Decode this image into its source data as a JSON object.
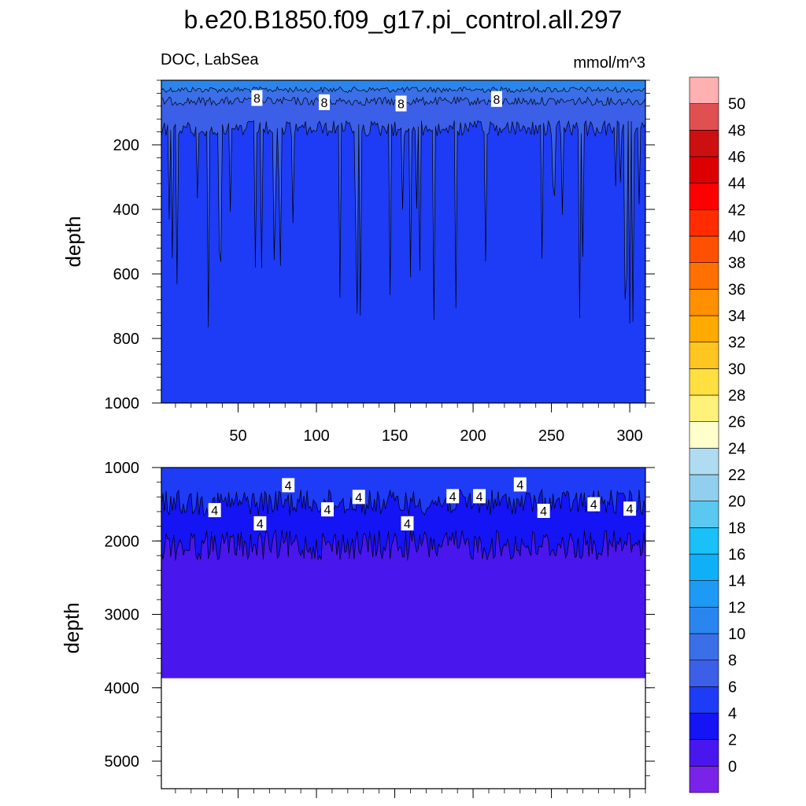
{
  "title": "b.e20.B1850.f09_g17.pi_control.all.297",
  "chart_data": [
    {
      "type": "contour",
      "panel": "upper",
      "left_label": "DOC, LabSea",
      "right_label": "mmol/m^3",
      "ylabel": "depth",
      "ylim": [
        0,
        1000
      ],
      "y_reversed": true,
      "y_ticks": [
        "200",
        "400",
        "600",
        "800",
        "1000"
      ],
      "y_tick_values": [
        200,
        400,
        600,
        800,
        1000
      ],
      "xlim": [
        1,
        310
      ],
      "x_ticks": [
        "50",
        "100",
        "150",
        "200",
        "250",
        "300"
      ],
      "x_tick_values": [
        50,
        100,
        150,
        200,
        250,
        300
      ],
      "contour_labels": [
        {
          "text": "8",
          "x": 62,
          "y": 55
        },
        {
          "text": "8",
          "x": 105,
          "y": 68
        },
        {
          "text": "8",
          "x": 154,
          "y": 72
        },
        {
          "text": "8",
          "x": 215,
          "y": 58
        }
      ],
      "bands": [
        {
          "level": 4,
          "color": "#1e3cf5",
          "depth_profile": "deep column 4-6 mmol/m^3 below ~150 m with narrow spikes of 6-8 reaching 500-800 m"
        },
        {
          "level": 6,
          "color": "#3b5fe6",
          "boundary_depth": [
            120,
            180
          ]
        },
        {
          "level": 8,
          "color": "#3a6fe8",
          "boundary_depth": [
            50,
            80
          ]
        },
        {
          "level": 10,
          "color": "#2a86ee",
          "boundary_depth": [
            20,
            40
          ]
        }
      ]
    },
    {
      "type": "contour",
      "panel": "lower",
      "ylabel": "depth",
      "ylim": [
        1000,
        5375
      ],
      "y_reversed": true,
      "y_ticks": [
        "1000",
        "2000",
        "3000",
        "4000",
        "5000"
      ],
      "y_tick_values": [
        1000,
        2000,
        3000,
        4000,
        5000
      ],
      "xlim": [
        1,
        310
      ],
      "contour_labels": [
        {
          "text": "4",
          "x": 35,
          "y": 1580
        },
        {
          "text": "4",
          "x": 64,
          "y": 1760
        },
        {
          "text": "4",
          "x": 82,
          "y": 1240
        },
        {
          "text": "4",
          "x": 107,
          "y": 1570
        },
        {
          "text": "4",
          "x": 127,
          "y": 1400
        },
        {
          "text": "4",
          "x": 158,
          "y": 1760
        },
        {
          "text": "4",
          "x": 187,
          "y": 1390
        },
        {
          "text": "4",
          "x": 204,
          "y": 1390
        },
        {
          "text": "4",
          "x": 230,
          "y": 1230
        },
        {
          "text": "4",
          "x": 245,
          "y": 1590
        },
        {
          "text": "4",
          "x": 277,
          "y": 1500
        },
        {
          "text": "4",
          "x": 300,
          "y": 1560
        }
      ],
      "bottom_of_data": 3870,
      "bands": [
        {
          "level": 4,
          "color": "#1e3cf5",
          "boundary_depth": [
            1300,
            1600
          ]
        },
        {
          "level": 2,
          "color": "#1414f5",
          "boundary_depth": [
            1900,
            2300
          ]
        },
        {
          "level": 0,
          "color": "#4a16ee",
          "to_depth": 3870
        }
      ]
    }
  ],
  "colorbar": {
    "labels": [
      "0",
      "2",
      "4",
      "6",
      "8",
      "10",
      "12",
      "14",
      "16",
      "18",
      "20",
      "22",
      "24",
      "26",
      "28",
      "30",
      "32",
      "34",
      "36",
      "38",
      "40",
      "42",
      "44",
      "46",
      "48",
      "50"
    ],
    "colors": [
      "#7b22e8",
      "#4a16ee",
      "#1414f5",
      "#1e3cf5",
      "#3b5fe6",
      "#3a6fe8",
      "#2a86ee",
      "#1e9af5",
      "#10b0f8",
      "#1ac0f8",
      "#5ac8f0",
      "#90d0ee",
      "#b0dcf2",
      "#ffffcc",
      "#fff27a",
      "#ffe040",
      "#ffc520",
      "#ffaa00",
      "#ff9000",
      "#ff7000",
      "#ff5000",
      "#ff2c00",
      "#ff0000",
      "#dd0000",
      "#cc1010",
      "#e05050",
      "#ffb0b0"
    ]
  }
}
